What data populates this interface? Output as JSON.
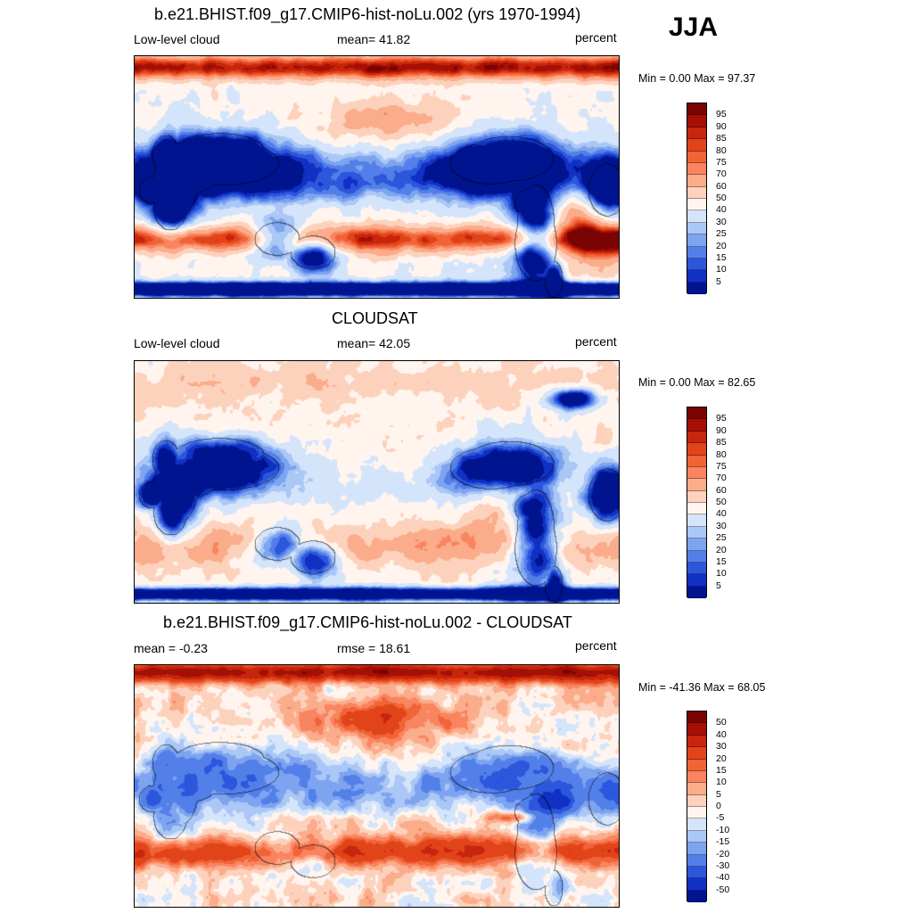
{
  "season": "JJA",
  "panels": [
    {
      "id": "model",
      "title": "b.e21.BHIST.f09_g17.CMIP6-hist-noLu.002 (yrs 1970-1994)",
      "left_label": "Low-level cloud",
      "center_label": "mean=  41.82",
      "right_label": "percent",
      "minmax": "Min =   0.00 Max =  97.37",
      "colorbar_levels": [
        "95",
        "90",
        "85",
        "80",
        "75",
        "70",
        "60",
        "50",
        "40",
        "30",
        "25",
        "20",
        "15",
        "10",
        "5"
      ],
      "style": "model"
    },
    {
      "id": "obs",
      "title": "CLOUDSAT",
      "left_label": "Low-level cloud",
      "center_label": "mean=  42.05",
      "right_label": "percent",
      "minmax": "Min =   0.00 Max =  82.65",
      "colorbar_levels": [
        "95",
        "90",
        "85",
        "80",
        "75",
        "70",
        "60",
        "50",
        "40",
        "30",
        "25",
        "20",
        "15",
        "10",
        "5"
      ],
      "style": "obs"
    },
    {
      "id": "diff",
      "title": "b.e21.BHIST.f09_g17.CMIP6-hist-noLu.002 - CLOUDSAT",
      "left_label": "mean =  -0.23",
      "center_label": "rmse =  18.61",
      "right_label": "percent",
      "minmax": "Min = -41.36 Max =  68.05",
      "colorbar_levels": [
        "50",
        "40",
        "30",
        "20",
        "15",
        "10",
        "5",
        "0",
        "-5",
        "-10",
        "-15",
        "-20",
        "-30",
        "-40",
        "-50"
      ],
      "style": "diff"
    }
  ],
  "colors": {
    "palette_top_to_bottom": [
      "#7a0403",
      "#a50f05",
      "#c8260c",
      "#e2441a",
      "#f06437",
      "#f98560",
      "#fbac8b",
      "#fdd2bd",
      "#fff5ee",
      "#d4e4fb",
      "#aac7f6",
      "#7ea4f0",
      "#537fe9",
      "#2c57dc",
      "#1031c3",
      "#00148f"
    ]
  }
}
